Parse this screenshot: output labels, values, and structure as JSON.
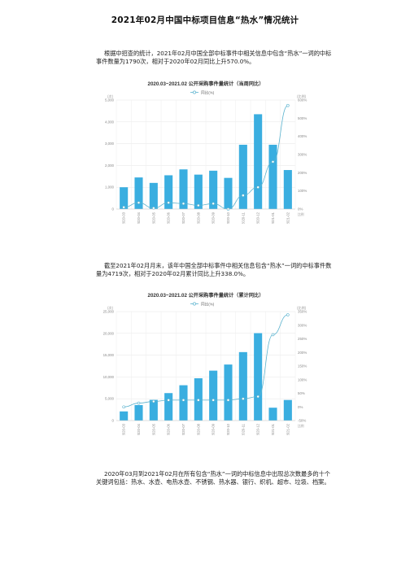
{
  "document": {
    "title": "2021年02月中国中标项目信息“热水”情况统计",
    "paragraph1": "根据中招查的统计，2021年02月中国全部中标事件中相关信息中包含“热水”一词的中标事件数量为1790次，相对于2020年02月同比上升570.0%。",
    "paragraph2": "截至2021年02月月末，该年中国全部中标事件中相关信息包含“热水”一词的中标事件数量为4719次，相对于2020年02月累计同比上升338.0%。",
    "paragraph3": "2020年03月到2021年02月在所有包含“热水”一词的中标信息中出现总次数最多的十个关键词包括：热水、水壶、电热水壶、不锈钢、热水器、银行、织机、超市、垃圾、档案。"
  },
  "chart_data": [
    {
      "type": "bar",
      "title": "2020.03~2021.02 公开采购事件量统计（当周同比）",
      "legend": "同比(%)",
      "ylabel": "(次)",
      "y2label": "(比例)",
      "categories": [
        "2020-03",
        "2020-04",
        "2020-05",
        "2020-06",
        "2020-07",
        "2020-08",
        "2020-09",
        "2020-10",
        "2020-11",
        "2020-12",
        "2021-01",
        "2021-02"
      ],
      "values": [
        1000,
        1450,
        1200,
        1550,
        1820,
        1580,
        1760,
        1430,
        2950,
        4350,
        2950,
        1790
      ],
      "line_values": [
        10,
        35,
        5,
        35,
        30,
        20,
        30,
        0,
        75,
        120,
        260,
        570
      ],
      "ylim": [
        0,
        5000
      ],
      "yticks": [
        "0",
        "1,000",
        "2,000",
        "3,000",
        "4,000",
        "5,000"
      ],
      "y2lim": [
        0,
        600
      ],
      "y2ticks": [
        "0%",
        "100%",
        "200%",
        "300%",
        "400%",
        "500%",
        "600%"
      ],
      "y2unit": "比例",
      "bar_color": "#3aaee0",
      "line_color": "#5bb3cf"
    },
    {
      "type": "bar",
      "title": "2020.03~2021.02 公开采购事件量统计（累计同比）",
      "legend": "同比(%)",
      "ylabel": "(次)",
      "y2label": "(比例)",
      "categories": [
        "2020-03",
        "2020-04",
        "2020-05",
        "2020-06",
        "2020-07",
        "2020-08",
        "2020-09",
        "2020-10",
        "2020-11",
        "2020-12",
        "2021-01",
        "2021-02"
      ],
      "values": [
        2100,
        3550,
        4750,
        6300,
        8100,
        9700,
        11450,
        12850,
        15700,
        20050,
        2950,
        4719
      ],
      "line_values": [
        0,
        14,
        20,
        25,
        25,
        25,
        25,
        25,
        30,
        38,
        265,
        338
      ],
      "ylim": [
        0,
        25000
      ],
      "yticks": [
        "0",
        "5,000",
        "10,000",
        "15,000",
        "20,000",
        "25,000"
      ],
      "y2lim": [
        -50,
        350
      ],
      "y2ticks": [
        "-50%",
        "0%",
        "50%",
        "100%",
        "150%",
        "200%",
        "250%",
        "300%",
        "350%"
      ],
      "y2unit": "比例",
      "bar_color": "#3aaee0",
      "line_color": "#5bb3cf"
    }
  ]
}
